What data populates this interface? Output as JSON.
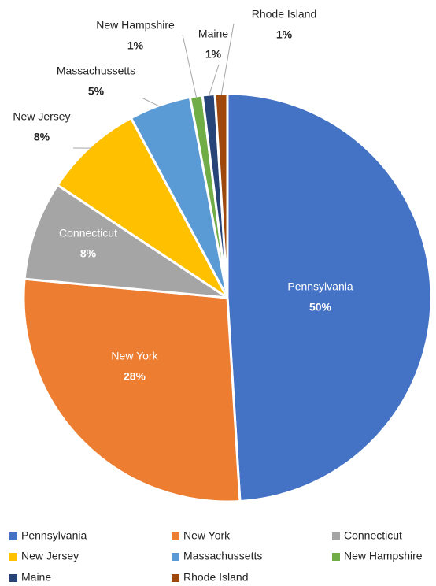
{
  "chart_data": {
    "type": "pie",
    "categories": [
      "Pennsylvania",
      "New York",
      "Connecticut",
      "New Jersey",
      "Massachussetts",
      "New Hampshire",
      "Maine",
      "Rhode Island"
    ],
    "values": [
      50,
      28,
      8,
      8,
      5,
      1,
      1,
      1
    ],
    "value_labels": [
      "50%",
      "28%",
      "8%",
      "8%",
      "5%",
      "1%",
      "1%",
      "1%"
    ],
    "colors": [
      "#4472c4",
      "#ed7d31",
      "#a5a5a5",
      "#ffc000",
      "#5b9bd5",
      "#70ad47",
      "#264478",
      "#9e480e"
    ],
    "legend": "bottom"
  }
}
